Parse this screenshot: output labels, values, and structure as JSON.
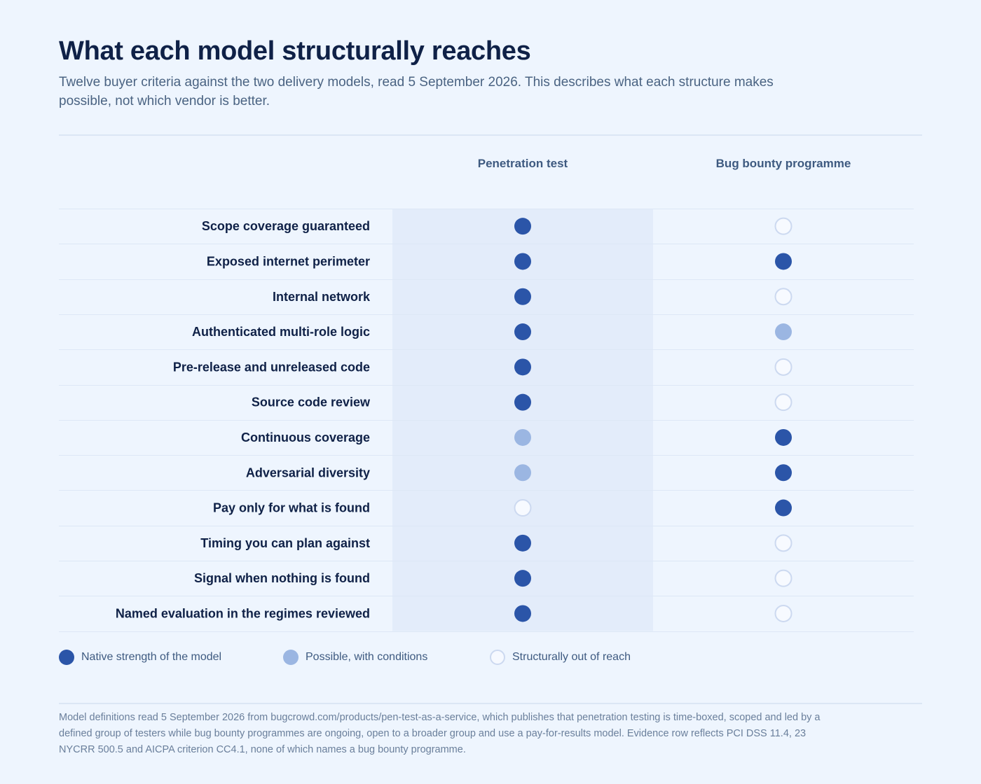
{
  "title": "What each model structurally reaches",
  "subtitle": "Twelve buyer criteria against the two delivery models, read 5 September 2026. This describes what each structure makes possible, not which vendor is better.",
  "columns": [
    "Penetration test",
    "Bug bounty programme"
  ],
  "legend": [
    {
      "level": "full",
      "label": "Native strength of the model"
    },
    {
      "level": "partial",
      "label": "Possible, with conditions"
    },
    {
      "level": "none",
      "label": "Structurally out of reach"
    }
  ],
  "footnote": "Model definitions read 5 September 2026 from bugcrowd.com/products/pen-test-as-a-service, which publishes that penetration testing is time-boxed, scoped and led by a defined group of testers while bug bounty programmes are ongoing, open to a broader group and use a pay-for-results model. Evidence row reflects PCI DSS 11.4, 23 NYCRR 500.5 and AICPA criterion CC4.1, none of which names a bug bounty programme.",
  "colors": {
    "full": "#2b55a8",
    "partial": "#9bb6e2",
    "none_stroke": "#ccd9f0",
    "highlight_column": "#e3ecfa"
  },
  "chart_data": {
    "type": "table",
    "levels": {
      "full": "Native strength of the model",
      "partial": "Possible, with conditions",
      "none": "Structurally out of reach"
    },
    "columns": [
      "Penetration test",
      "Bug bounty programme"
    ],
    "highlighted_column": "Penetration test",
    "rows": [
      {
        "criterion": "Scope coverage guaranteed",
        "values": [
          "full",
          "none"
        ]
      },
      {
        "criterion": "Exposed internet perimeter",
        "values": [
          "full",
          "full"
        ]
      },
      {
        "criterion": "Internal network",
        "values": [
          "full",
          "none"
        ]
      },
      {
        "criterion": "Authenticated multi-role logic",
        "values": [
          "full",
          "partial"
        ]
      },
      {
        "criterion": "Pre-release and unreleased code",
        "values": [
          "full",
          "none"
        ]
      },
      {
        "criterion": "Source code review",
        "values": [
          "full",
          "none"
        ]
      },
      {
        "criterion": "Continuous coverage",
        "values": [
          "partial",
          "full"
        ]
      },
      {
        "criterion": "Adversarial diversity",
        "values": [
          "partial",
          "full"
        ]
      },
      {
        "criterion": "Pay only for what is found",
        "values": [
          "none",
          "full"
        ]
      },
      {
        "criterion": "Timing you can plan against",
        "values": [
          "full",
          "none"
        ]
      },
      {
        "criterion": "Signal when nothing is found",
        "values": [
          "full",
          "none"
        ]
      },
      {
        "criterion": "Named evaluation in the regimes reviewed",
        "values": [
          "full",
          "none"
        ]
      }
    ]
  }
}
